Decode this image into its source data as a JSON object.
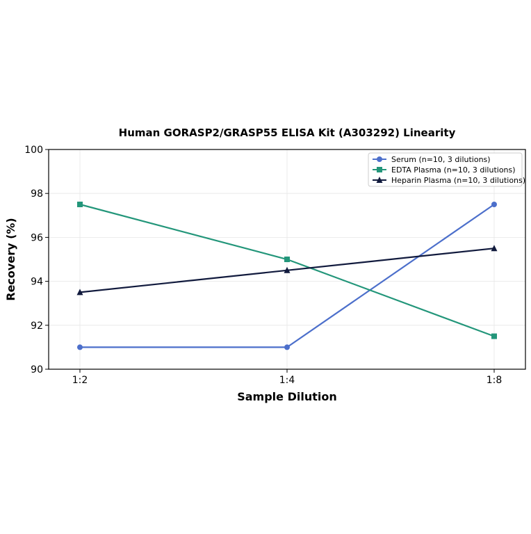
{
  "chart_data": {
    "type": "line",
    "title": "Human GORASP2/GRASP55 ELISA Kit (A303292) Linearity",
    "xlabel": "Sample Dilution",
    "ylabel": "Recovery (%)",
    "categories": [
      "1:2",
      "1:4",
      "1:8"
    ],
    "ylim": [
      90,
      100
    ],
    "yticks": [
      90,
      92,
      94,
      96,
      98,
      100
    ],
    "grid": true,
    "legend_position": "top-right",
    "series": [
      {
        "name": "Serum (n=10, 3 dilutions)",
        "values": [
          91.0,
          91.0,
          97.5
        ],
        "color": "#4c6fcb",
        "marker": "circle"
      },
      {
        "name": "EDTA Plasma (n=10, 3 dilutions)",
        "values": [
          97.5,
          95.0,
          91.5
        ],
        "color": "#23967a",
        "marker": "square"
      },
      {
        "name": "Heparin Plasma (n=10, 3 dilutions)",
        "values": [
          93.5,
          94.5,
          95.5
        ],
        "color": "#111a3d",
        "marker": "triangle"
      }
    ]
  }
}
